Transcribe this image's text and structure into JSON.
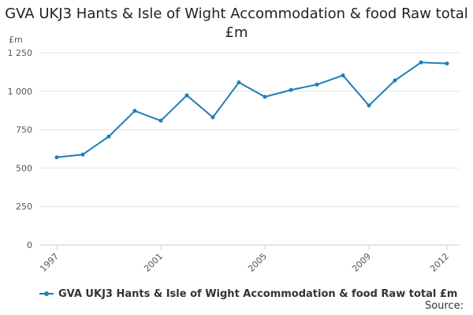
{
  "chart_data": {
    "type": "line",
    "title": "GVA UKJ3 Hants & Isle of Wight Accommodation & food Raw total £m",
    "ylabel": "£m",
    "ylim": [
      0,
      1250
    ],
    "y_ticks": [
      0,
      250,
      500,
      750,
      1000,
      1250
    ],
    "y_tick_labels": [
      "0",
      "250",
      "500",
      "750",
      "1 000",
      "1 250"
    ],
    "x_tick_labels": [
      "1997",
      "2001",
      "2005",
      "2009",
      "2012"
    ],
    "x": [
      1997,
      1998,
      1999,
      2000,
      2001,
      2002,
      2003,
      2004,
      2005,
      2006,
      2007,
      2008,
      2009,
      2010,
      2011,
      2012
    ],
    "series": [
      {
        "name": "GVA UKJ3 Hants & Isle of Wight Accommodation & food Raw total £m",
        "color": "#1f7db9",
        "values": [
          570,
          588,
          705,
          872,
          808,
          973,
          830,
          1057,
          963,
          1008,
          1043,
          1103,
          907,
          1070,
          1187,
          1180
        ]
      }
    ],
    "grid": "horizontal",
    "legend_position": "bottom-left"
  },
  "source_label": "Source:"
}
